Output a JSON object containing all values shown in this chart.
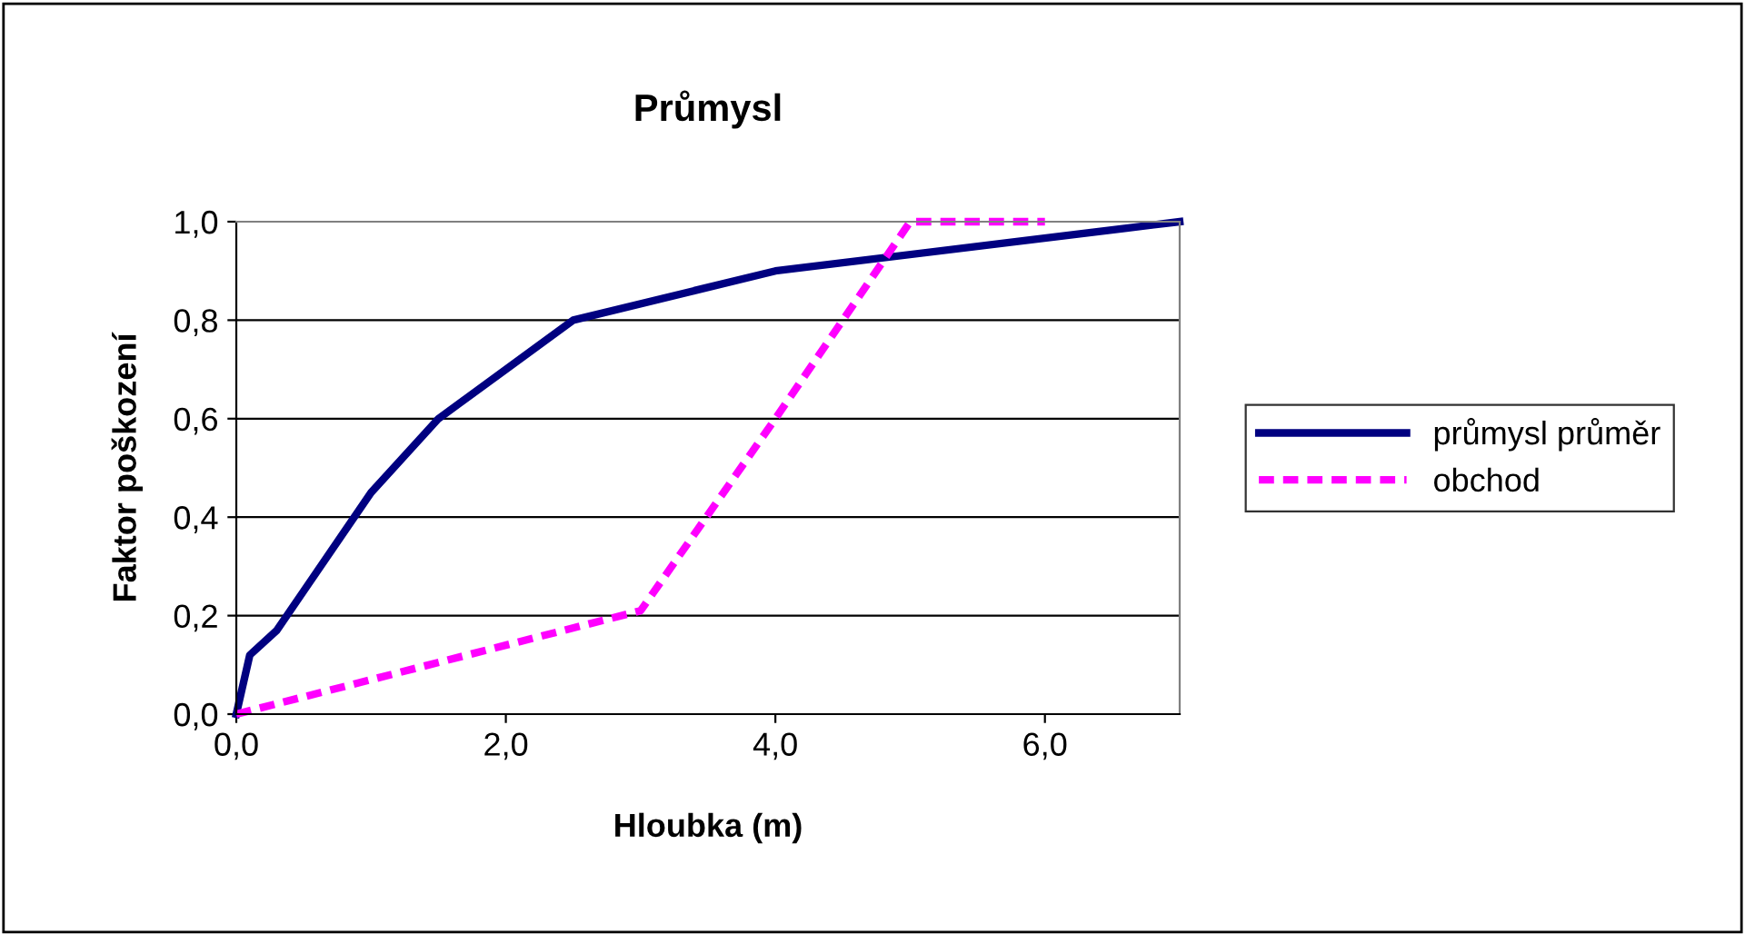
{
  "chart_data": {
    "type": "line",
    "title": "Průmysl",
    "xlabel": "Hloubka (m)",
    "ylabel": "Faktor poškození",
    "xlim": [
      0,
      7
    ],
    "xticks": [
      {
        "value": 0,
        "label": "0,0"
      },
      {
        "value": 2,
        "label": "2,0"
      },
      {
        "value": 4,
        "label": "4,0"
      },
      {
        "value": 6,
        "label": "6,0"
      }
    ],
    "ylim": [
      0,
      1
    ],
    "yticks": [
      {
        "value": 0,
        "label": "0,0"
      },
      {
        "value": 0.2,
        "label": "0,2"
      },
      {
        "value": 0.4,
        "label": "0,4"
      },
      {
        "value": 0.6,
        "label": "0,6"
      },
      {
        "value": 0.8,
        "label": "0,8"
      },
      {
        "value": 1,
        "label": "1,0"
      }
    ],
    "grid": "y",
    "legend": "right",
    "marker": "none",
    "series": [
      {
        "name": "průmysl průměr",
        "color": "#000080",
        "line_style": "solid",
        "x": [
          0,
          0.1,
          0.3,
          0.5,
          1,
          1.5,
          2,
          2.5,
          4,
          7
        ],
        "values": [
          0,
          0.12,
          0.17,
          0.25,
          0.45,
          0.6,
          0.7,
          0.8,
          0.9,
          1.0
        ]
      },
      {
        "name": "obchod",
        "color": "#ff00ff",
        "line_style": "dashed",
        "x": [
          0,
          3,
          4,
          5,
          6
        ],
        "values": [
          0,
          0.21,
          0.6,
          1.0,
          1.0
        ]
      }
    ]
  }
}
